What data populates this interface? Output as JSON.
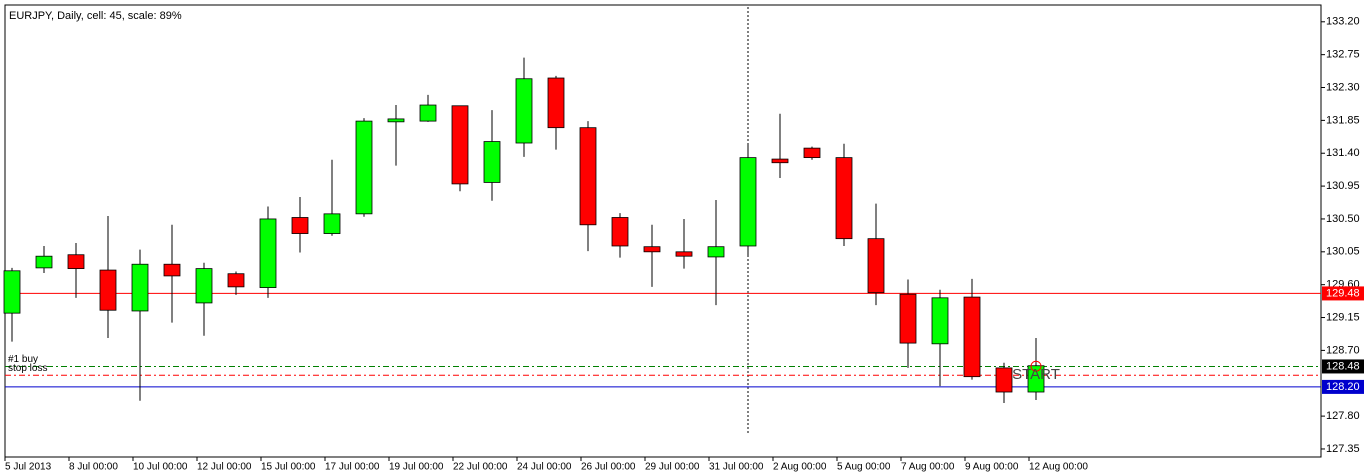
{
  "chart_data": {
    "type": "candlestick",
    "title": "EURJPY, Daily, cell: 45, scale: 89%",
    "categories": [
      "5 Jul 2013",
      null,
      "8 Jul 00:00",
      null,
      "10 Jul 00:00",
      null,
      "12 Jul 00:00",
      null,
      "15 Jul 00:00",
      null,
      "17 Jul 00:00",
      null,
      "19 Jul 00:00",
      null,
      "22 Jul 00:00",
      null,
      "24 Jul 00:00",
      null,
      "26 Jul 00:00",
      null,
      "29 Jul 00:00",
      null,
      "31 Jul 00:00",
      null,
      "2 Aug 00:00",
      null,
      "5 Aug 00:00",
      null,
      "7 Aug 00:00",
      null,
      "9 Aug 00:00",
      null,
      "12 Aug 00:00"
    ],
    "series": [
      {
        "up_color": "#00ff00",
        "down_color": "#ff0000",
        "open": [
          129.21,
          129.83,
          130.01,
          129.8,
          129.24,
          129.88,
          129.35,
          129.75,
          129.56,
          130.52,
          130.3,
          130.57,
          131.83,
          131.84,
          132.05,
          131.0,
          131.54,
          132.43,
          131.75,
          130.52,
          130.12,
          130.05,
          129.98,
          130.13,
          131.32,
          131.47,
          131.34,
          130.23,
          129.47,
          128.79,
          129.43,
          128.46,
          128.13
        ],
        "high": [
          129.83,
          130.13,
          130.17,
          130.54,
          130.08,
          130.42,
          129.9,
          129.78,
          130.67,
          130.8,
          131.31,
          131.88,
          132.06,
          132.2,
          132.05,
          131.99,
          132.71,
          132.46,
          131.84,
          130.58,
          130.42,
          130.5,
          130.76,
          131.53,
          131.94,
          131.49,
          131.53,
          130.71,
          129.67,
          129.53,
          129.68,
          128.53,
          128.87
        ],
        "low": [
          128.82,
          129.76,
          129.42,
          128.87,
          128.01,
          129.08,
          128.9,
          129.46,
          129.42,
          130.04,
          130.27,
          130.53,
          131.23,
          131.83,
          130.88,
          130.75,
          131.35,
          131.45,
          130.06,
          129.97,
          129.57,
          129.82,
          129.32,
          129.98,
          131.06,
          131.31,
          130.13,
          129.32,
          128.46,
          128.21,
          128.3,
          127.98,
          128.02
        ],
        "close": [
          129.79,
          129.99,
          129.82,
          129.25,
          129.88,
          129.72,
          129.82,
          129.57,
          130.5,
          130.3,
          130.57,
          131.84,
          131.87,
          132.06,
          130.98,
          131.56,
          132.42,
          131.75,
          130.42,
          130.13,
          130.05,
          129.99,
          130.12,
          131.34,
          131.27,
          131.34,
          130.23,
          129.49,
          128.8,
          129.42,
          128.34,
          128.13,
          128.49
        ]
      }
    ],
    "ylim": [
      127.24,
      133.43
    ],
    "yticks": [
      {
        "value": 133.2,
        "label": "133.20"
      },
      132.75,
      {
        "value": 132.3,
        "label": "132.30"
      },
      131.85,
      {
        "value": 131.4,
        "label": "131.40"
      },
      130.95,
      {
        "value": 130.5,
        "label": "130.50"
      },
      130.05,
      {
        "value": 129.6,
        "label": "129.60"
      },
      129.15,
      {
        "value": 128.7,
        "label": "128.70"
      },
      {
        "value": 127.8,
        "label": "127.80"
      },
      127.35
    ],
    "levels": [
      {
        "value": 129.48,
        "label": "129.48",
        "color": "#ff0000",
        "label_bg": "#ff0000",
        "style": "solid"
      },
      {
        "value": 128.48,
        "label": "128.48",
        "color": "#008000",
        "label_bg": "#000000",
        "style": "dashdot",
        "text": "#1 buy"
      },
      {
        "value": 128.36,
        "color": "#ff0000",
        "style": "dashdot",
        "text": "stop loss"
      },
      {
        "value": 128.2,
        "label": "128.20",
        "color": "#0000cd",
        "label_bg": "#0000cd",
        "style": "solid"
      }
    ],
    "vline_index": 23,
    "annotation": {
      "text": "START",
      "index": 32,
      "value": 128.36
    }
  }
}
